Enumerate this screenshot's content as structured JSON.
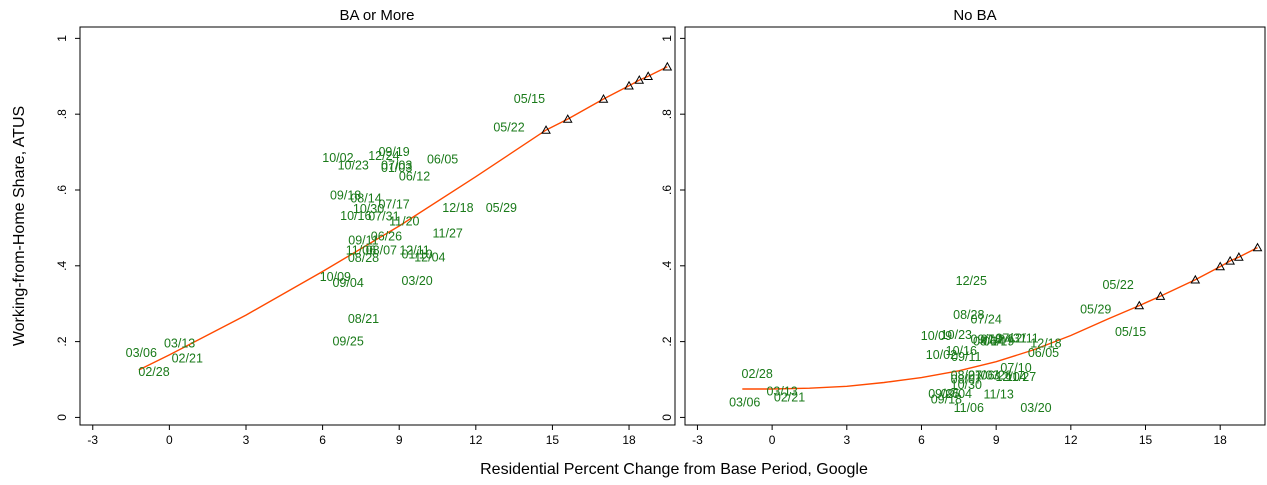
{
  "chart_data": [
    {
      "type": "scatter",
      "title": "BA or More",
      "xlabel": "Residential Percent Change from Base Period, Google",
      "ylabel": "Working-from-Home Share, ATUS",
      "xlim": [
        -3.5,
        19.8
      ],
      "ylim": [
        -0.02,
        1.03
      ],
      "xticks": [
        "-3",
        "0",
        "3",
        "6",
        "9",
        "12",
        "15",
        "18"
      ],
      "xtick_values": [
        -3,
        0,
        3,
        6,
        9,
        12,
        15,
        18
      ],
      "yticks": [
        "0",
        ".2",
        ".4",
        ".6",
        ".8",
        "1"
      ],
      "ytick_values": [
        0,
        0.2,
        0.4,
        0.6,
        0.8,
        1
      ],
      "grid": false,
      "labels_color": "#1a7a1a",
      "fit_color": "#ff4a00",
      "points": [
        {
          "label": "02/28",
          "x": -0.6,
          "y": 0.12
        },
        {
          "label": "03/06",
          "x": -1.1,
          "y": 0.17
        },
        {
          "label": "03/13",
          "x": 0.4,
          "y": 0.195
        },
        {
          "label": "02/21",
          "x": 0.7,
          "y": 0.155
        },
        {
          "label": "05/15",
          "x": 14.1,
          "y": 0.84
        },
        {
          "label": "05/22",
          "x": 13.3,
          "y": 0.765
        },
        {
          "label": "06/05",
          "x": 10.7,
          "y": 0.68
        },
        {
          "label": "06/12",
          "x": 9.6,
          "y": 0.635
        },
        {
          "label": "10/02",
          "x": 6.6,
          "y": 0.685
        },
        {
          "label": "10/23",
          "x": 7.2,
          "y": 0.665
        },
        {
          "label": "09/19",
          "x": 8.8,
          "y": 0.7
        },
        {
          "label": "12/24",
          "x": 8.4,
          "y": 0.69
        },
        {
          "label": "07/03",
          "x": 8.9,
          "y": 0.665
        },
        {
          "label": "01/03",
          "x": 8.9,
          "y": 0.658
        },
        {
          "label": "09/18",
          "x": 6.9,
          "y": 0.585
        },
        {
          "label": "08/14",
          "x": 7.7,
          "y": 0.578
        },
        {
          "label": "07/17",
          "x": 8.8,
          "y": 0.562
        },
        {
          "label": "10/30",
          "x": 7.8,
          "y": 0.55
        },
        {
          "label": "12/18",
          "x": 11.3,
          "y": 0.552
        },
        {
          "label": "05/29",
          "x": 13.0,
          "y": 0.552
        },
        {
          "label": "10/16",
          "x": 7.3,
          "y": 0.532
        },
        {
          "label": "07/31",
          "x": 8.4,
          "y": 0.53
        },
        {
          "label": "11/20",
          "x": 9.2,
          "y": 0.517
        },
        {
          "label": "11/27",
          "x": 10.9,
          "y": 0.485
        },
        {
          "label": "06/26",
          "x": 8.5,
          "y": 0.477
        },
        {
          "label": "09/11",
          "x": 7.6,
          "y": 0.467
        },
        {
          "label": "11/06",
          "x": 7.5,
          "y": 0.44
        },
        {
          "label": "08/07",
          "x": 8.3,
          "y": 0.44
        },
        {
          "label": "12/11",
          "x": 9.6,
          "y": 0.44
        },
        {
          "label": "01/10",
          "x": 9.7,
          "y": 0.43
        },
        {
          "label": "12/04",
          "x": 10.2,
          "y": 0.422
        },
        {
          "label": "08/28",
          "x": 7.6,
          "y": 0.42
        },
        {
          "label": "10/09",
          "x": 6.5,
          "y": 0.37
        },
        {
          "label": "09/04",
          "x": 7.0,
          "y": 0.355
        },
        {
          "label": "03/20",
          "x": 9.7,
          "y": 0.36
        },
        {
          "label": "08/21",
          "x": 7.6,
          "y": 0.26
        },
        {
          "label": "09/25",
          "x": 7.0,
          "y": 0.2
        }
      ],
      "fit": {
        "x": [
          -1.2,
          0,
          3,
          6,
          9,
          12,
          14.75,
          15.6,
          17.0,
          18.0,
          18.4,
          18.75,
          19.5
        ],
        "y": [
          0.125,
          0.165,
          0.27,
          0.385,
          0.505,
          0.635,
          0.758,
          0.787,
          0.84,
          0.875,
          0.89,
          0.9,
          0.925
        ]
      },
      "triangles": [
        {
          "x": 14.75,
          "y": 0.758
        },
        {
          "x": 15.6,
          "y": 0.787
        },
        {
          "x": 17.0,
          "y": 0.84
        },
        {
          "x": 18.0,
          "y": 0.875
        },
        {
          "x": 18.4,
          "y": 0.89
        },
        {
          "x": 18.75,
          "y": 0.9
        },
        {
          "x": 19.5,
          "y": 0.925
        }
      ]
    },
    {
      "type": "scatter",
      "title": "No BA",
      "xlim": [
        -3.5,
        19.8
      ],
      "ylim": [
        -0.02,
        1.03
      ],
      "xticks": [
        "-3",
        "0",
        "3",
        "6",
        "9",
        "12",
        "15",
        "18"
      ],
      "xtick_values": [
        -3,
        0,
        3,
        6,
        9,
        12,
        15,
        18
      ],
      "yticks": [
        "0",
        ".2",
        ".4",
        ".6",
        ".8",
        "1"
      ],
      "ytick_values": [
        0,
        0.2,
        0.4,
        0.6,
        0.8,
        1
      ],
      "grid": false,
      "labels_color": "#1a7a1a",
      "fit_color": "#ff4a00",
      "points": [
        {
          "label": "12/25",
          "x": 8.0,
          "y": 0.36
        },
        {
          "label": "05/22",
          "x": 13.9,
          "y": 0.35
        },
        {
          "label": "05/29",
          "x": 13.0,
          "y": 0.285
        },
        {
          "label": "08/28",
          "x": 7.9,
          "y": 0.27
        },
        {
          "label": "07/24",
          "x": 8.6,
          "y": 0.258
        },
        {
          "label": "05/15",
          "x": 14.4,
          "y": 0.225
        },
        {
          "label": "10/09",
          "x": 6.6,
          "y": 0.215
        },
        {
          "label": "10/23",
          "x": 7.4,
          "y": 0.218
        },
        {
          "label": "09/18",
          "x": 8.6,
          "y": 0.205
        },
        {
          "label": "07/24",
          "x": 9.0,
          "y": 0.205
        },
        {
          "label": "07/31",
          "x": 9.6,
          "y": 0.208
        },
        {
          "label": "12/11",
          "x": 10.1,
          "y": 0.208
        },
        {
          "label": "08/14",
          "x": 8.7,
          "y": 0.2
        },
        {
          "label": "06/19",
          "x": 9.1,
          "y": 0.2
        },
        {
          "label": "10/16",
          "x": 7.6,
          "y": 0.175
        },
        {
          "label": "12/18",
          "x": 11.0,
          "y": 0.195
        },
        {
          "label": "10/02",
          "x": 6.8,
          "y": 0.165
        },
        {
          "label": "09/11",
          "x": 7.8,
          "y": 0.16
        },
        {
          "label": "06/05",
          "x": 10.9,
          "y": 0.17
        },
        {
          "label": "07/10",
          "x": 9.8,
          "y": 0.13
        },
        {
          "label": "08/21",
          "x": 7.8,
          "y": 0.11
        },
        {
          "label": "07/03",
          "x": 8.5,
          "y": 0.11
        },
        {
          "label": "06/26",
          "x": 9.0,
          "y": 0.11
        },
        {
          "label": "12/04",
          "x": 9.6,
          "y": 0.107
        },
        {
          "label": "11/27",
          "x": 10.0,
          "y": 0.107
        },
        {
          "label": "10/30",
          "x": 7.8,
          "y": 0.085
        },
        {
          "label": "08/07",
          "x": 7.8,
          "y": 0.1
        },
        {
          "label": "09/25",
          "x": 6.9,
          "y": 0.062
        },
        {
          "label": "09/04",
          "x": 7.4,
          "y": 0.062
        },
        {
          "label": "09/18",
          "x": 7.0,
          "y": 0.047
        },
        {
          "label": "11/13",
          "x": 9.1,
          "y": 0.06
        },
        {
          "label": "11/06",
          "x": 7.9,
          "y": 0.025
        },
        {
          "label": "03/20",
          "x": 10.6,
          "y": 0.025
        },
        {
          "label": "02/28",
          "x": -0.6,
          "y": 0.115
        },
        {
          "label": "03/13",
          "x": 0.4,
          "y": 0.068
        },
        {
          "label": "02/21",
          "x": 0.7,
          "y": 0.052
        },
        {
          "label": "03/06",
          "x": -1.1,
          "y": 0.04
        }
      ],
      "fit": {
        "x": [
          -1.2,
          0,
          1.5,
          3,
          4.5,
          6,
          7.5,
          9,
          10.5,
          12,
          13.5,
          14.75,
          15.6,
          17.0,
          18.0,
          18.4,
          18.75,
          19.5
        ],
        "y": [
          0.075,
          0.075,
          0.077,
          0.082,
          0.092,
          0.105,
          0.123,
          0.147,
          0.178,
          0.216,
          0.26,
          0.295,
          0.32,
          0.363,
          0.398,
          0.413,
          0.423,
          0.448
        ]
      },
      "triangles": [
        {
          "x": 14.75,
          "y": 0.295
        },
        {
          "x": 15.6,
          "y": 0.32
        },
        {
          "x": 17.0,
          "y": 0.363
        },
        {
          "x": 18.0,
          "y": 0.398
        },
        {
          "x": 18.4,
          "y": 0.413
        },
        {
          "x": 18.75,
          "y": 0.423
        },
        {
          "x": 19.5,
          "y": 0.448
        }
      ]
    }
  ]
}
